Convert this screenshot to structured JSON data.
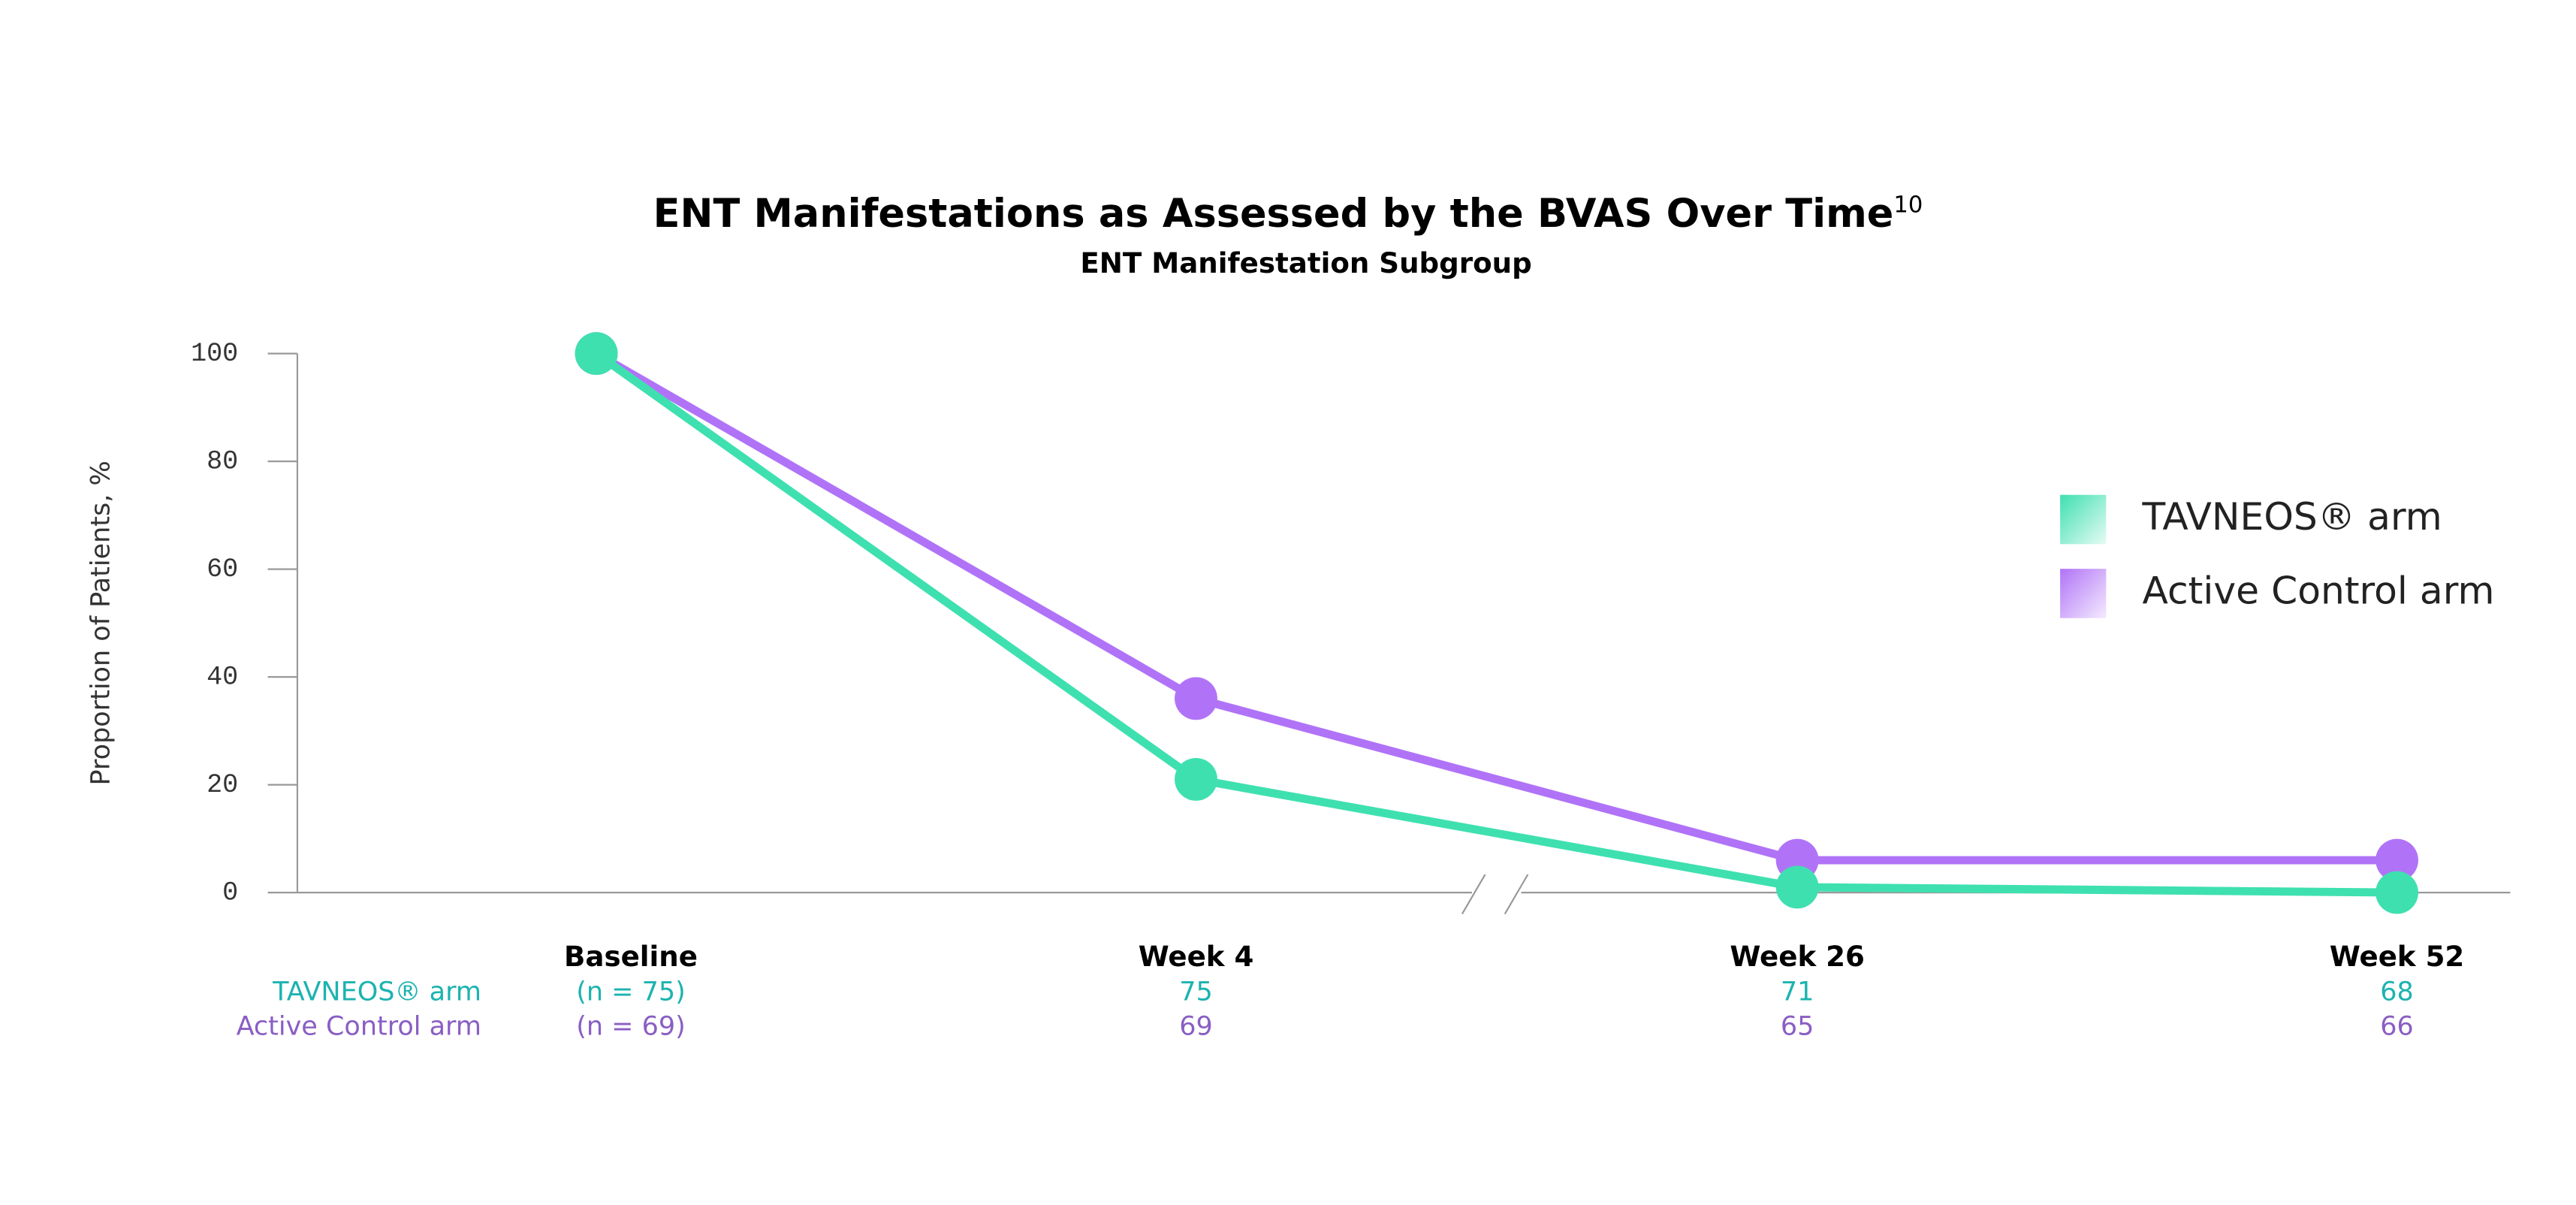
{
  "chart_data": {
    "type": "line",
    "title": "ENT Manifestations as Assessed by the BVAS Over Time",
    "title_reference": "10",
    "subtitle": "ENT Manifestation Subgroup",
    "y_label": "Proportion of Patients, %",
    "categories": [
      "Baseline",
      "Week 4",
      "Week 26",
      "Week 52"
    ],
    "series": [
      {
        "name": "TAVNEOS® arm",
        "color": "#3fe0b0",
        "values": [
          100,
          21,
          1,
          0
        ]
      },
      {
        "name": "Active Control arm",
        "color": "#b073f7",
        "values": [
          100,
          36,
          6,
          6
        ]
      }
    ],
    "ylim": [
      0,
      100
    ],
    "yticks": [
      0,
      20,
      40,
      60,
      80,
      100
    ],
    "grid": false,
    "legend": "right"
  },
  "table": {
    "rows": [
      {
        "label": "TAVNEOS® arm",
        "color": "#1cb3b0",
        "cells": [
          "(n = 75)",
          75,
          71,
          68
        ]
      },
      {
        "label": "Active Control arm",
        "color": "#8a5ec4",
        "cells": [
          "(n = 69)",
          69,
          65,
          66
        ]
      }
    ]
  }
}
